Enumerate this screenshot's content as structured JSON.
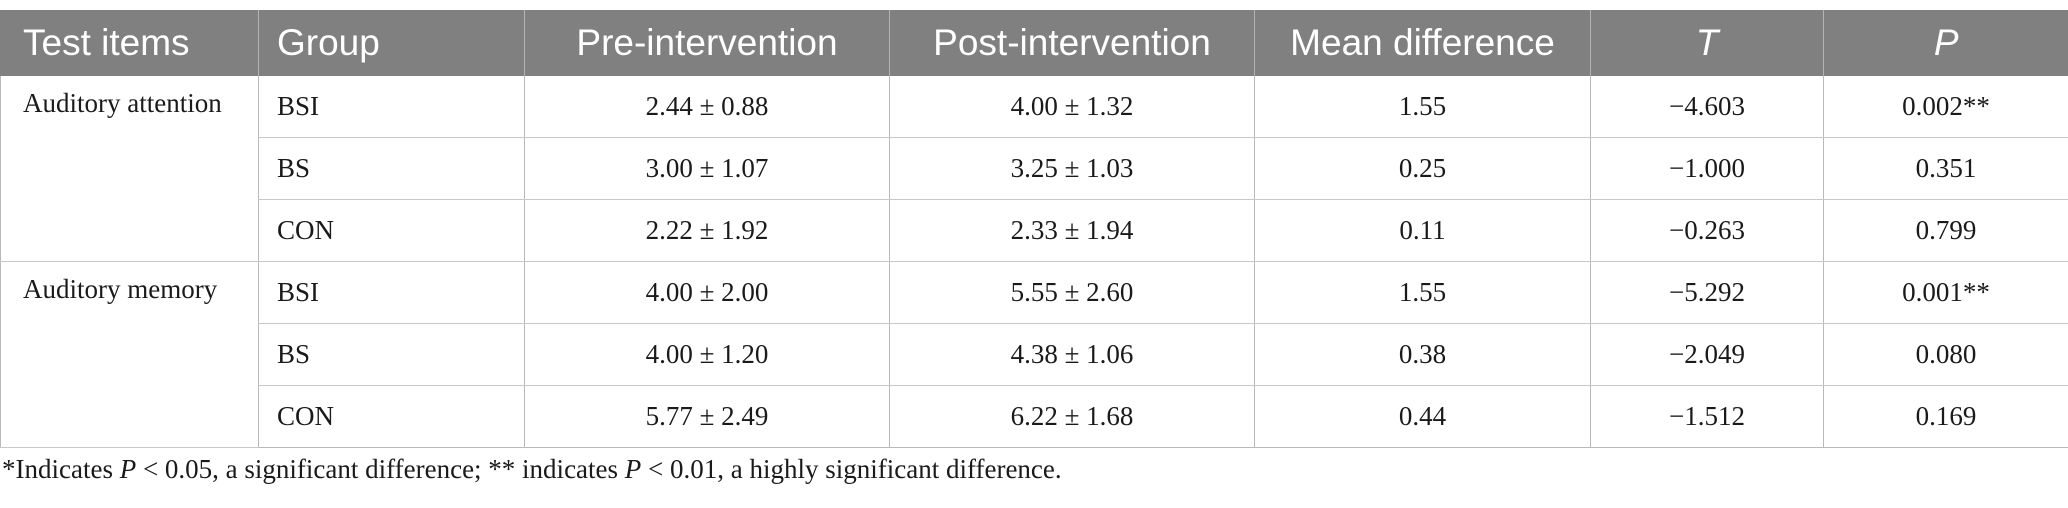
{
  "table": {
    "headers": [
      "Test items",
      "Group",
      "Pre-intervention",
      "Post-intervention",
      "Mean difference",
      "T",
      "P"
    ],
    "sections": [
      {
        "item": "Auditory attention",
        "rows": [
          {
            "group": "BSI",
            "pre": "2.44 ± 0.88",
            "post": "4.00 ± 1.32",
            "mean_diff": "1.55",
            "t": "−4.603",
            "p": "0.002**"
          },
          {
            "group": "BS",
            "pre": "3.00 ± 1.07",
            "post": "3.25 ± 1.03",
            "mean_diff": "0.25",
            "t": "−1.000",
            "p": "0.351"
          },
          {
            "group": "CON",
            "pre": "2.22 ± 1.92",
            "post": "2.33 ± 1.94",
            "mean_diff": "0.11",
            "t": "−0.263",
            "p": "0.799"
          }
        ]
      },
      {
        "item": "Auditory memory",
        "rows": [
          {
            "group": "BSI",
            "pre": "4.00 ± 2.00",
            "post": "5.55 ± 2.60",
            "mean_diff": "1.55",
            "t": "−5.292",
            "p": "0.001**"
          },
          {
            "group": "BS",
            "pre": "4.00 ± 1.20",
            "post": "4.38 ± 1.06",
            "mean_diff": "0.38",
            "t": "−2.049",
            "p": "0.080"
          },
          {
            "group": "CON",
            "pre": "5.77 ± 2.49",
            "post": "6.22 ± 1.68",
            "mean_diff": "0.44",
            "t": "−1.512",
            "p": "0.169"
          }
        ]
      }
    ]
  },
  "footnote": {
    "part1": "*Indicates ",
    "p1": "P",
    "part2": " < 0.05, a significant difference; ** indicates ",
    "p2": "P",
    "part3": " < 0.01, a highly significant difference."
  }
}
